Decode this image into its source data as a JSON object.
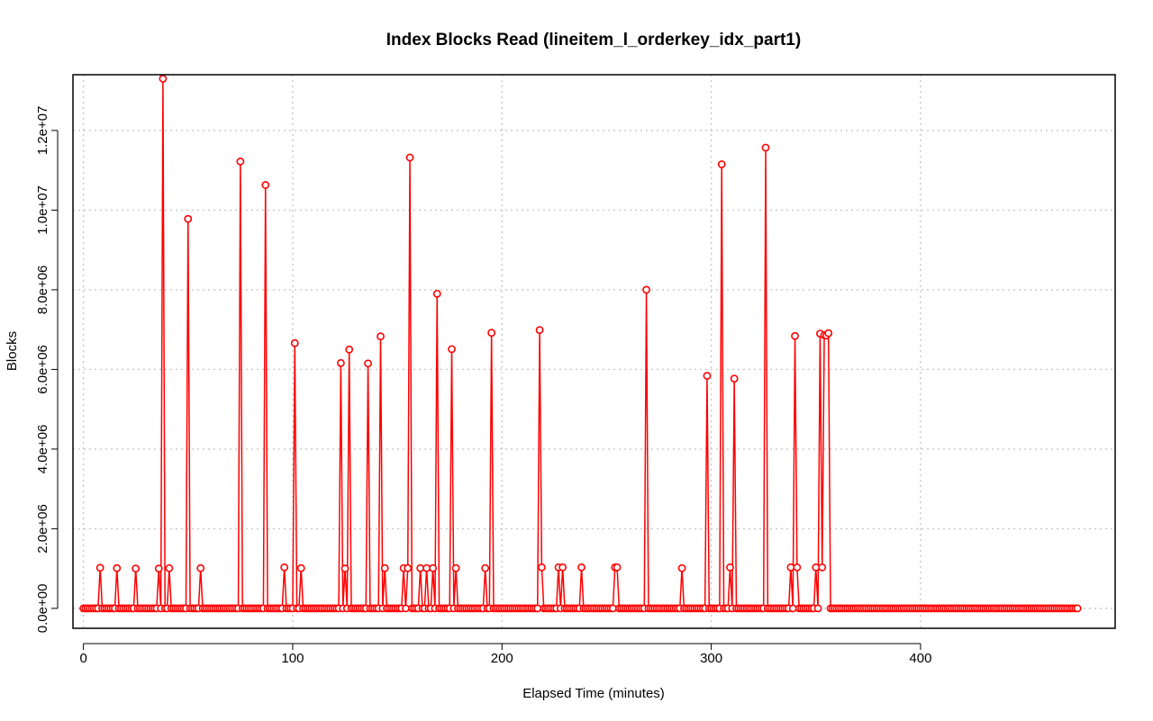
{
  "chart_data": {
    "type": "line",
    "title": "Index Blocks Read (lineitem_l_orderkey_idx_part1)",
    "xlabel": "Elapsed Time (minutes)",
    "ylabel": "Blocks",
    "xlim": [
      -5,
      493
    ],
    "ylim": [
      -500000,
      13400000
    ],
    "x_ticks": [
      0,
      100,
      200,
      300,
      400
    ],
    "x_tick_labels": [
      "0",
      "100",
      "200",
      "300",
      "400"
    ],
    "y_ticks": [
      0,
      2000000,
      4000000,
      6000000,
      8000000,
      10000000,
      12000000
    ],
    "y_tick_labels": [
      "0.0e+00",
      "2.0e+06",
      "4.0e+06",
      "6.0e+06",
      "8.0e+06",
      "1.0e+07",
      "1.2e+07"
    ],
    "grid": true,
    "series": [
      {
        "color": "#ff0000",
        "style": "lines-and-points",
        "x_start": 0,
        "x_end": 475,
        "x_step": 1,
        "baseline": 0,
        "spikes": [
          [
            8,
            1020000
          ],
          [
            16,
            1010000
          ],
          [
            25,
            1000000
          ],
          [
            36,
            1000000
          ],
          [
            38,
            13300000
          ],
          [
            41,
            1010000
          ],
          [
            50,
            9780000
          ],
          [
            56,
            1010000
          ],
          [
            75,
            11220000
          ],
          [
            87,
            10630000
          ],
          [
            96,
            1030000
          ],
          [
            101,
            6660000
          ],
          [
            104,
            1010000
          ],
          [
            123,
            6160000
          ],
          [
            125,
            1000000
          ],
          [
            127,
            6500000
          ],
          [
            136,
            6150000
          ],
          [
            142,
            6830000
          ],
          [
            144,
            1010000
          ],
          [
            153,
            1010000
          ],
          [
            155,
            1010000
          ],
          [
            156,
            11320000
          ],
          [
            161,
            1010000
          ],
          [
            164,
            1010000
          ],
          [
            167,
            1010000
          ],
          [
            169,
            7900000
          ],
          [
            176,
            6510000
          ],
          [
            178,
            1010000
          ],
          [
            192,
            1010000
          ],
          [
            195,
            6920000
          ],
          [
            218,
            6990000
          ],
          [
            219,
            1030000
          ],
          [
            227,
            1030000
          ],
          [
            229,
            1030000
          ],
          [
            238,
            1030000
          ],
          [
            254,
            1030000
          ],
          [
            255,
            1030000
          ],
          [
            269,
            8000000
          ],
          [
            286,
            1010000
          ],
          [
            298,
            5840000
          ],
          [
            305,
            11150000
          ],
          [
            309,
            1030000
          ],
          [
            311,
            5770000
          ],
          [
            326,
            11570000
          ],
          [
            338,
            1030000
          ],
          [
            340,
            6840000
          ],
          [
            341,
            1030000
          ],
          [
            350,
            1030000
          ],
          [
            352,
            6900000
          ],
          [
            353,
            1030000
          ],
          [
            354,
            6860000
          ],
          [
            355,
            6850000
          ],
          [
            356,
            6910000
          ]
        ]
      }
    ]
  }
}
